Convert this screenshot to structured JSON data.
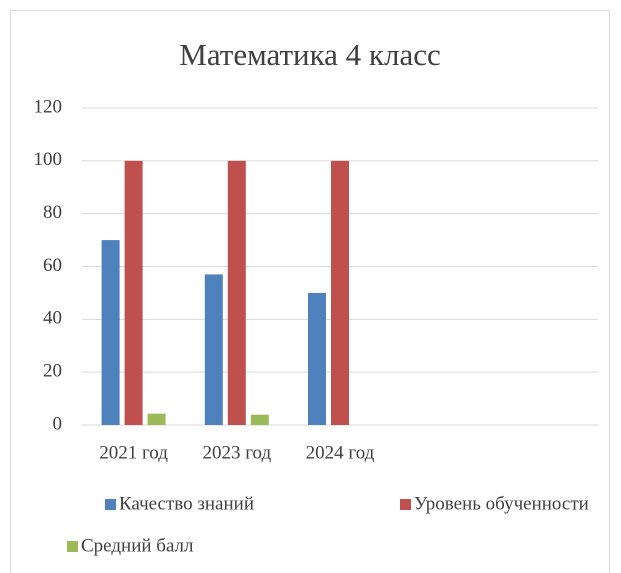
{
  "chart_data": {
    "type": "bar",
    "title": "Математика  4 класс",
    "categories": [
      "2021 год",
      "2023 год",
      "2024 год",
      null,
      null
    ],
    "series": [
      {
        "name": "Качество знаний",
        "color": "#4f81bd",
        "values": [
          70,
          57,
          50,
          null,
          null
        ]
      },
      {
        "name": "Уровень обученности",
        "color": "#c0504d",
        "values": [
          100,
          100,
          100,
          null,
          null
        ]
      },
      {
        "name": "Средний балл",
        "color": "#9bbb59",
        "values": [
          4.3,
          3.9,
          null,
          null,
          null
        ]
      }
    ],
    "ylim": [
      0,
      120
    ],
    "yticks": [
      0,
      20,
      40,
      60,
      80,
      100,
      120
    ],
    "grid": true,
    "legend": "bottom"
  }
}
